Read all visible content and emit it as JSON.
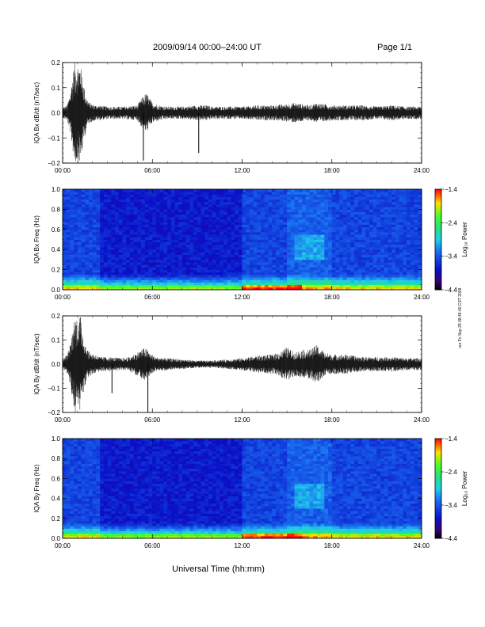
{
  "page": {
    "title": "2009/09/14  00:00–24:00 UT",
    "page_label": "Page 1/1",
    "side_stamp": "run Fri Sep 25 08:46:40 CST 2009"
  },
  "chart_data": [
    {
      "type": "line",
      "ylabel": "IQA Bx dB/dt (nT/sec)",
      "xlim": [
        0,
        24
      ],
      "ylim": [
        -0.2,
        0.2
      ],
      "x_tick_labels": [
        "00:00",
        "06:00",
        "12:00",
        "18:00",
        "24:00"
      ],
      "y_tick_labels": [
        "−0.2",
        "−0.1",
        "0.0",
        "0.1",
        "0.2"
      ],
      "envelope": {
        "hours": [
          0,
          0.3,
          0.5,
          0.8,
          1.0,
          1.2,
          1.4,
          1.6,
          1.8,
          2.2,
          2.5,
          3,
          4,
          5,
          5.3,
          5.6,
          6,
          6.5,
          7,
          8,
          9,
          9.6,
          10,
          11,
          12,
          13,
          14,
          15,
          15.5,
          16,
          16.5,
          17,
          17.5,
          18,
          19,
          20,
          21,
          22,
          23,
          24
        ],
        "amplitude": [
          0.02,
          0.03,
          0.08,
          0.2,
          0.2,
          0.2,
          0.12,
          0.06,
          0.04,
          0.03,
          0.03,
          0.025,
          0.025,
          0.03,
          0.06,
          0.08,
          0.04,
          0.03,
          0.025,
          0.025,
          0.03,
          0.03,
          0.025,
          0.025,
          0.025,
          0.03,
          0.03,
          0.035,
          0.04,
          0.035,
          0.03,
          0.04,
          0.035,
          0.03,
          0.03,
          0.03,
          0.025,
          0.03,
          0.025,
          0.025
        ]
      },
      "spikes": [
        {
          "hour": 5.4,
          "value": -0.19
        },
        {
          "hour": 9.1,
          "value": -0.16
        }
      ]
    },
    {
      "type": "heatmap",
      "ylabel": "IQA Bx Freq (Hz)",
      "xlim": [
        0,
        24
      ],
      "ylim": [
        0,
        1.0
      ],
      "x_tick_labels": [
        "00:00",
        "06:00",
        "12:00",
        "18:00",
        "24:00"
      ],
      "y_tick_labels": [
        "0.0",
        "0.2",
        "0.4",
        "0.6",
        "0.8",
        "1.0"
      ],
      "colorbar": {
        "label": "Log₁₀ Power",
        "range": [
          -4.4,
          -1.4
        ],
        "tick_labels": [
          "−1.4",
          "−2.4",
          "−3.4",
          "−4.4"
        ]
      },
      "cells": 96
    },
    {
      "type": "line",
      "ylabel": "IQA By dB/dt (nT/sec)",
      "xlim": [
        0,
        24
      ],
      "ylim": [
        -0.2,
        0.2
      ],
      "x_tick_labels": [
        "00:00",
        "06:00",
        "12:00",
        "18:00",
        "24:00"
      ],
      "y_tick_labels": [
        "−0.2",
        "−0.1",
        "0.0",
        "0.1",
        "0.2"
      ],
      "envelope": {
        "hours": [
          0,
          0.3,
          0.5,
          0.8,
          1.0,
          1.2,
          1.4,
          1.6,
          1.8,
          2.2,
          2.5,
          3,
          4,
          4.5,
          5,
          5.5,
          5.8,
          6.2,
          7,
          8,
          9,
          10,
          11,
          12,
          12.5,
          13,
          14,
          14.5,
          15,
          15.5,
          16,
          16.5,
          17,
          17.5,
          18,
          19,
          20,
          21,
          22,
          23,
          24
        ],
        "amplitude": [
          0.02,
          0.04,
          0.08,
          0.2,
          0.2,
          0.2,
          0.12,
          0.07,
          0.05,
          0.04,
          0.03,
          0.03,
          0.025,
          0.03,
          0.05,
          0.07,
          0.05,
          0.03,
          0.025,
          0.02,
          0.015,
          0.015,
          0.02,
          0.025,
          0.03,
          0.035,
          0.04,
          0.05,
          0.07,
          0.05,
          0.06,
          0.06,
          0.08,
          0.05,
          0.04,
          0.04,
          0.03,
          0.03,
          0.03,
          0.025,
          0.025
        ]
      },
      "spikes": [
        {
          "hour": 5.7,
          "value": -0.2
        },
        {
          "hour": 3.3,
          "value": -0.12
        }
      ]
    },
    {
      "type": "heatmap",
      "ylabel": "IQA By Freq (Hz)",
      "xlabel": "Universal Time (hh:mm)",
      "xlim": [
        0,
        24
      ],
      "ylim": [
        0,
        1.0
      ],
      "x_tick_labels": [
        "00:00",
        "06:00",
        "12:00",
        "18:00",
        "24:00"
      ],
      "y_tick_labels": [
        "0.0",
        "0.2",
        "0.4",
        "0.6",
        "0.8",
        "1.0"
      ],
      "colorbar": {
        "label": "Log₁₀ Power",
        "range": [
          -4.4,
          -1.4
        ],
        "tick_labels": [
          "−1.4",
          "−2.4",
          "−3.4",
          "−4.4"
        ]
      },
      "cells": 96
    }
  ]
}
